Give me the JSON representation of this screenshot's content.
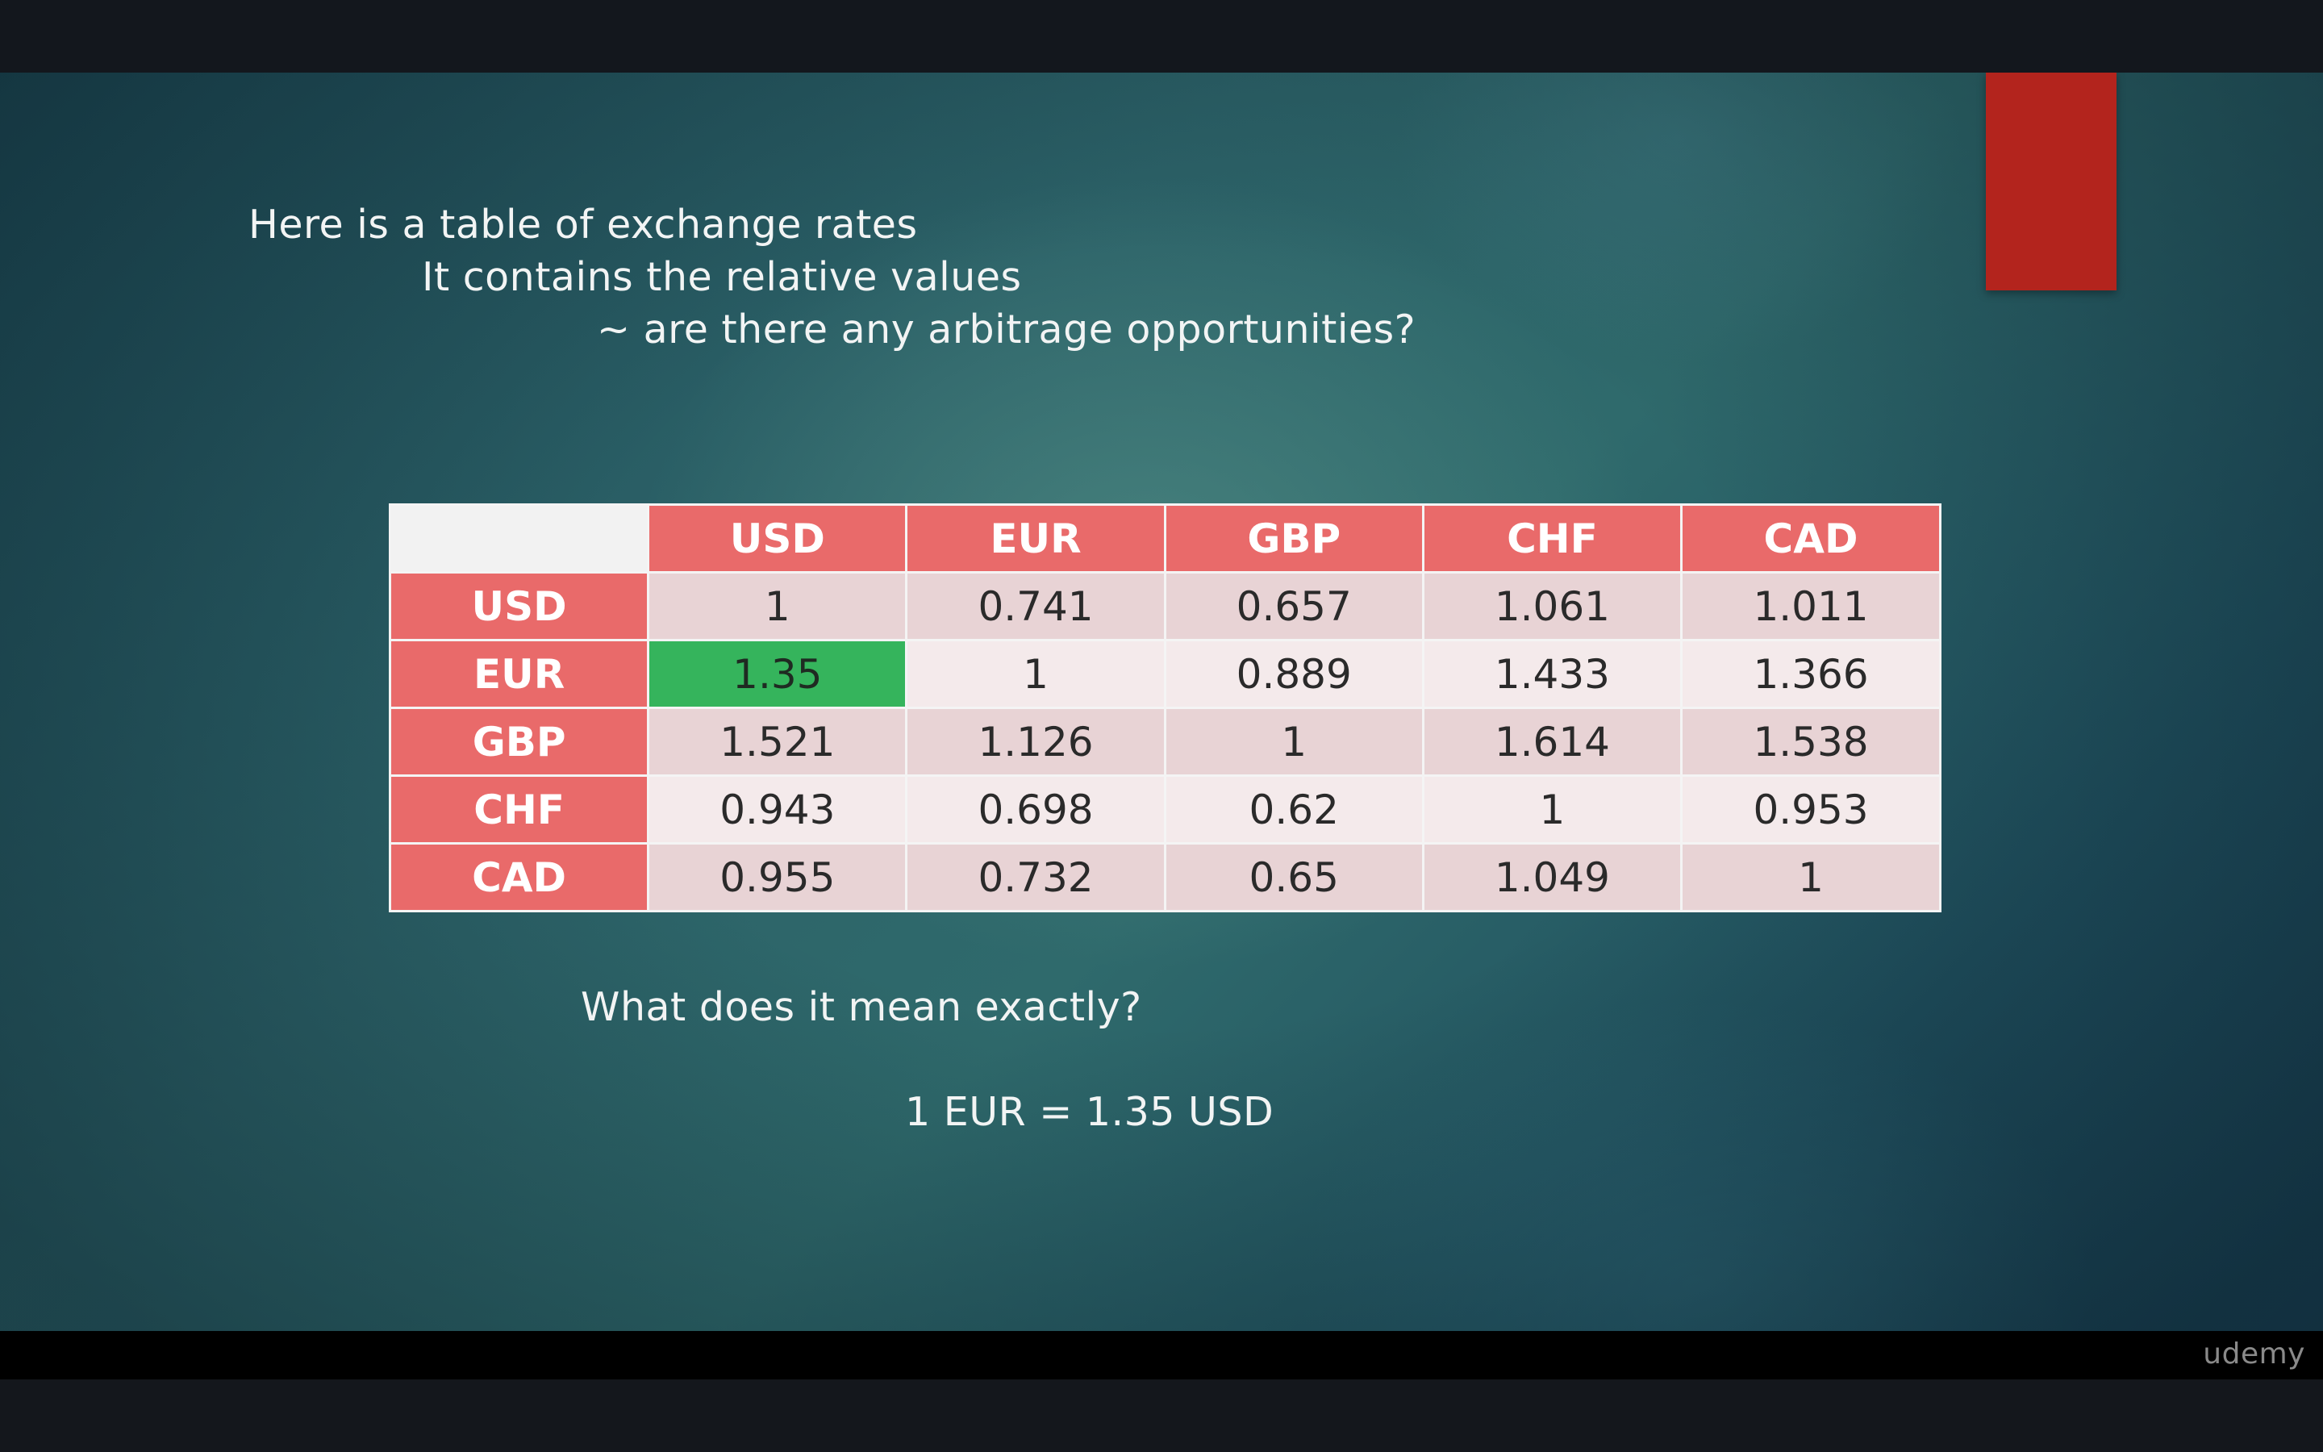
{
  "slide": {
    "intro_line1": "Here is a table of exchange rates",
    "intro_line2": "It contains the relative values",
    "intro_line3": "~ are there any arbitrage opportunities?",
    "question": "What does it mean exactly?",
    "equation": "1 EUR = 1.35 USD",
    "accent_color": "#b3241d",
    "highlight_color": "#35b45c",
    "header_color": "#e96a6a"
  },
  "table": {
    "columns": [
      "USD",
      "EUR",
      "GBP",
      "CHF",
      "CAD"
    ],
    "rows": [
      {
        "label": "USD",
        "values": [
          "1",
          "0.741",
          "0.657",
          "1.061",
          "1.011"
        ]
      },
      {
        "label": "EUR",
        "values": [
          "1.35",
          "1",
          "0.889",
          "1.433",
          "1.366"
        ]
      },
      {
        "label": "GBP",
        "values": [
          "1.521",
          "1.126",
          "1",
          "1.614",
          "1.538"
        ]
      },
      {
        "label": "CHF",
        "values": [
          "0.943",
          "0.698",
          "0.62",
          "1",
          "0.953"
        ]
      },
      {
        "label": "CAD",
        "values": [
          "0.955",
          "0.732",
          "0.65",
          "1.049",
          "1"
        ]
      }
    ],
    "highlighted_cell": {
      "row": "EUR",
      "column": "USD"
    }
  },
  "player": {
    "brand": "udemy"
  }
}
